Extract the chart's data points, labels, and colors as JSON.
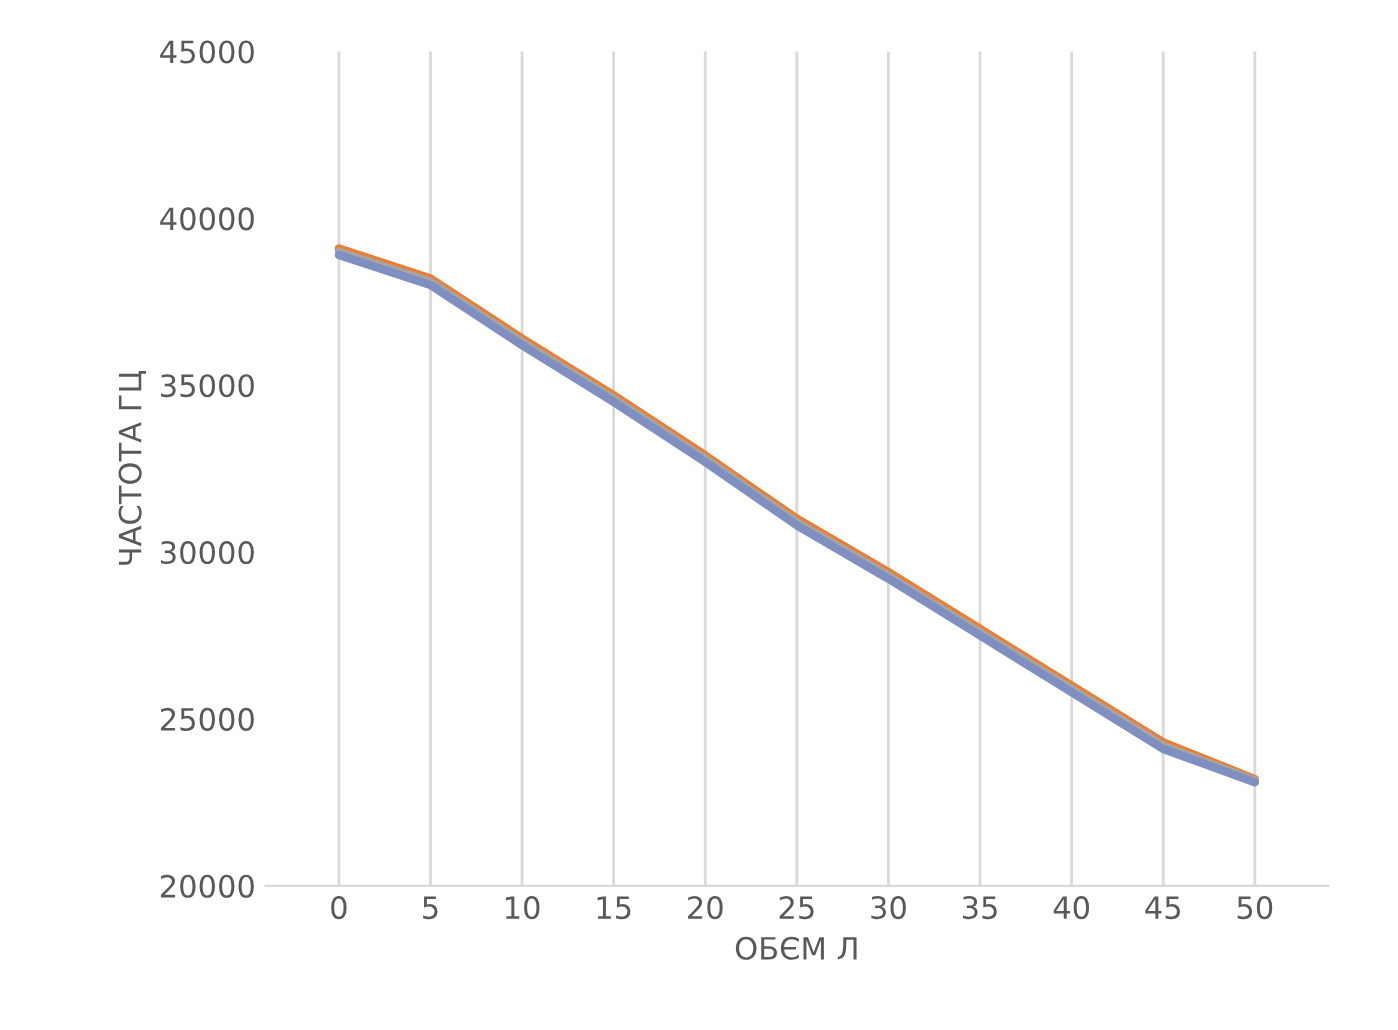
{
  "chart_data": {
    "type": "line",
    "xlabel": "ОБЄМ Л",
    "ylabel": "ЧАСТОТА ГЦ",
    "categories": [
      "0",
      "5",
      "10",
      "15",
      "20",
      "25",
      "30",
      "35",
      "40",
      "45",
      "50"
    ],
    "ylim": [
      20000,
      45000
    ],
    "yticks": [
      20000,
      25000,
      30000,
      35000,
      40000,
      45000
    ],
    "grid": "x",
    "legend": false,
    "marker": "none",
    "line_style": "solid",
    "series": [
      {
        "color": "#ed7d31",
        "values": [
          39100,
          38200,
          36400,
          34700,
          32900,
          31000,
          29400,
          27700,
          26000,
          24300,
          23200
        ]
      },
      {
        "color": "#a5a5a5",
        "values": [
          39000,
          38100,
          36300,
          34600,
          32800,
          30900,
          29300,
          27600,
          25900,
          24200,
          23150
        ]
      },
      {
        "color": "#7f8fbf",
        "values": [
          38900,
          38000,
          36200,
          34500,
          32700,
          30800,
          29200,
          27500,
          25800,
          24100,
          23100
        ]
      }
    ]
  }
}
